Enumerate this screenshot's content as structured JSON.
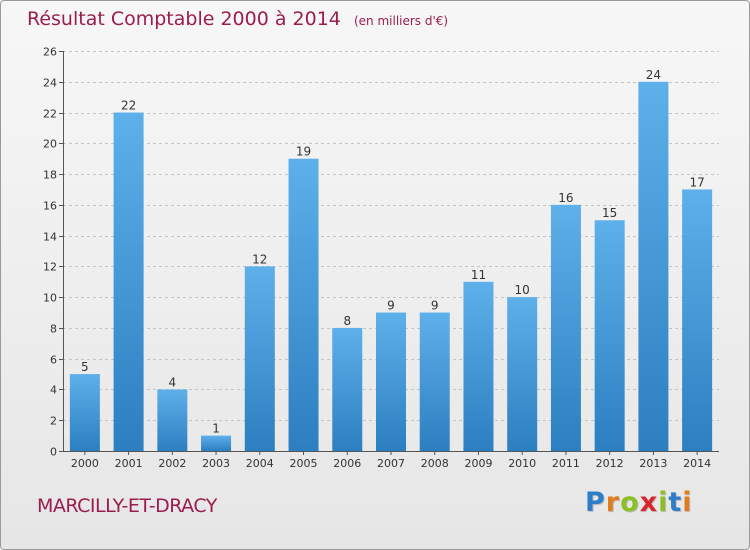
{
  "header": {
    "title": "Résultat Comptable 2000 à 2014",
    "subtitle": "(en milliers d'€)"
  },
  "footer": {
    "commune": "MARCILLY-ET-DRACY",
    "logo_letters": [
      "P",
      "r",
      "o",
      "x",
      "i",
      "t",
      "i"
    ],
    "logo_colors": [
      "#2d7dc8",
      "#e07b1f",
      "#8cbf26",
      "#d9262d",
      "#8cbf26",
      "#2d7dc8",
      "#e07b1f"
    ]
  },
  "colors": {
    "title": "#9b1d4e",
    "bar_top": "#5eb0ea",
    "bar_bottom": "#2c7fc0",
    "grid": "#c4c4c4"
  },
  "chart_data": {
    "type": "bar",
    "categories": [
      "2000",
      "2001",
      "2002",
      "2003",
      "2004",
      "2005",
      "2006",
      "2007",
      "2008",
      "2009",
      "2010",
      "2011",
      "2012",
      "2013",
      "2014"
    ],
    "values": [
      5,
      22,
      4,
      1,
      12,
      19,
      8,
      9,
      9,
      11,
      10,
      16,
      15,
      24,
      17
    ],
    "data_labels": [
      "5",
      "22",
      "4",
      "1",
      "12",
      "19",
      "8",
      "9",
      "9",
      "11",
      "10",
      "16",
      "15",
      "24",
      "17"
    ],
    "y_ticks": [
      "0",
      "2",
      "4",
      "6",
      "8",
      "10",
      "12",
      "14",
      "16",
      "18",
      "20",
      "22",
      "24",
      "26"
    ],
    "ylim": [
      0,
      26
    ],
    "grid": true
  }
}
